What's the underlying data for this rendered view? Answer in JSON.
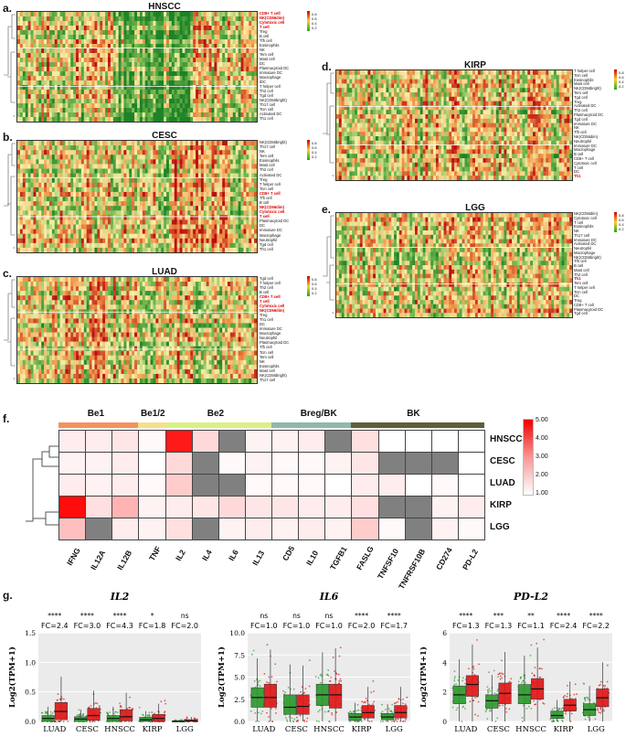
{
  "panels": {
    "a": {
      "label": "a.",
      "title": "HNSCC",
      "rows": [
        {
          "t": "CD8+ T cell",
          "r": 1
        },
        {
          "t": "NK(CD56dim)",
          "r": 1
        },
        {
          "t": "Cytotoxic cell",
          "r": 1
        },
        {
          "t": "T cell",
          "r": 1
        },
        {
          "t": "Treg"
        },
        {
          "t": "B cell"
        },
        {
          "t": "Tfh cell"
        },
        {
          "t": "Eosinophils"
        },
        {
          "t": "NK"
        },
        {
          "t": "Tem cell"
        },
        {
          "t": "Mast cell"
        },
        {
          "t": "DC"
        },
        {
          "t": "Plasmacytoid DC"
        },
        {
          "t": "Immature DC"
        },
        {
          "t": "Macrophage"
        },
        {
          "t": "iDC"
        },
        {
          "t": "T helper cell"
        },
        {
          "t": "Th2 cell"
        },
        {
          "t": "Tgd cell"
        },
        {
          "t": "NK(CD56bright)"
        },
        {
          "t": "Th17 cell"
        },
        {
          "t": "Tcm cell"
        },
        {
          "t": "Activated DC"
        },
        {
          "t": "Th1 cell"
        }
      ]
    },
    "b": {
      "label": "b.",
      "title": "CESC",
      "rows": [
        {
          "t": "NK(CD56bright)"
        },
        {
          "t": "Th17 cell"
        },
        {
          "t": "NK"
        },
        {
          "t": "Tem cell"
        },
        {
          "t": "Eosinophils"
        },
        {
          "t": "Mast cell"
        },
        {
          "t": "Th2 cell"
        },
        {
          "t": "Activated DC"
        },
        {
          "t": "Treg"
        },
        {
          "t": "T helper cell"
        },
        {
          "t": "Tcm cell"
        },
        {
          "t": "CD8+ T cell",
          "r": 1
        },
        {
          "t": "Tfh cell"
        },
        {
          "t": "B cell"
        },
        {
          "t": "NK(CD56dim)",
          "r": 1
        },
        {
          "t": "Cytotoxic cell",
          "r": 1
        },
        {
          "t": "T cell",
          "r": 1
        },
        {
          "t": "Plasmacytoid DC"
        },
        {
          "t": "DC"
        },
        {
          "t": "Immature DC"
        },
        {
          "t": "Macrophage"
        },
        {
          "t": "Neutrophil"
        },
        {
          "t": "Tgd cell"
        },
        {
          "t": "Th1 cell"
        }
      ]
    },
    "c": {
      "label": "c.",
      "title": "LUAD",
      "rows": [
        {
          "t": "Tgd cell"
        },
        {
          "t": "T helper cell"
        },
        {
          "t": "Th2 cell"
        },
        {
          "t": "B cell"
        },
        {
          "t": "CD8+ T cell",
          "r": 1
        },
        {
          "t": "T cell",
          "r": 1
        },
        {
          "t": "Cytotoxic cell",
          "r": 1
        },
        {
          "t": "NK(CD56dim)",
          "r": 1
        },
        {
          "t": "Treg"
        },
        {
          "t": "Th1 cell"
        },
        {
          "t": "DC"
        },
        {
          "t": "Immature DC"
        },
        {
          "t": "Macrophage"
        },
        {
          "t": "Neutrophil"
        },
        {
          "t": "Plasmacytoid DC"
        },
        {
          "t": "Tfh cell"
        },
        {
          "t": "Tcm cell"
        },
        {
          "t": "Tem cell"
        },
        {
          "t": "NK"
        },
        {
          "t": "Eosinophils"
        },
        {
          "t": "Mast cell"
        },
        {
          "t": "NK(CD56bright)"
        },
        {
          "t": "Th17 cell"
        }
      ]
    },
    "d": {
      "label": "d.",
      "title": "KIRP",
      "rows": [
        {
          "t": "T helper cell"
        },
        {
          "t": "Tcm cell"
        },
        {
          "t": "Eosinophils"
        },
        {
          "t": "Mast cell"
        },
        {
          "t": "NK(CD56bright)"
        },
        {
          "t": "Tem cell"
        },
        {
          "t": "Tgd cell"
        },
        {
          "t": "Treg"
        },
        {
          "t": "Activated DC"
        },
        {
          "t": "Th2 cell"
        },
        {
          "t": "Plasmacytoid DC"
        },
        {
          "t": "Tgd cell"
        },
        {
          "t": "Immature DC"
        },
        {
          "t": "NK"
        },
        {
          "t": "Tfh cell"
        },
        {
          "t": "NK(CD56dim)"
        },
        {
          "t": "Neutrophil"
        },
        {
          "t": "Immature DC"
        },
        {
          "t": "Macrophage"
        },
        {
          "t": "B cell"
        },
        {
          "t": "CD8+ T cell"
        },
        {
          "t": "Cytotoxic cell"
        },
        {
          "t": "T cell"
        },
        {
          "t": "DC"
        },
        {
          "t": "Th1",
          "r": 1
        }
      ]
    },
    "e": {
      "label": "e.",
      "title": "LGG",
      "rows": [
        {
          "t": "NK(CD56dim)"
        },
        {
          "t": "Cytotoxic cell"
        },
        {
          "t": "T cell"
        },
        {
          "t": "Eosinophils"
        },
        {
          "t": "NK"
        },
        {
          "t": "Th17 cell"
        },
        {
          "t": "Immature DC"
        },
        {
          "t": "Activated DC"
        },
        {
          "t": "Neutrophil"
        },
        {
          "t": "Macrophage"
        },
        {
          "t": "NK(CD56bright)"
        },
        {
          "t": "Tfh cell"
        },
        {
          "t": "B cell"
        },
        {
          "t": "Mast cell"
        },
        {
          "t": "Th2 cell"
        },
        {
          "t": "Th1",
          "r": 1
        },
        {
          "t": "Tem cell"
        },
        {
          "t": "T helper cell"
        },
        {
          "t": "Tcm cell"
        },
        {
          "t": "DC"
        },
        {
          "t": "Treg"
        },
        {
          "t": "CD8+ T cell"
        },
        {
          "t": "Plasmacytoid DC"
        },
        {
          "t": "Tgd cell"
        }
      ]
    }
  },
  "hm_legend": [
    "0.8",
    "0.6",
    "0.4",
    "0.2"
  ],
  "panel_f": {
    "label": "f.",
    "groups": [
      {
        "name": "Be1",
        "color": "#f29360"
      },
      {
        "name": "Be1/2",
        "color": "#f6e08a"
      },
      {
        "name": "Be2",
        "color": "#dbef86"
      },
      {
        "name": "Breg/BK",
        "color": "#8fb8a8"
      },
      {
        "name": "BK",
        "color": "#5e5e3a"
      }
    ],
    "rows": [
      "HNSCC",
      "CESC",
      "LUAD",
      "KIRP",
      "LGG"
    ],
    "cols": [
      "IFNG",
      "IL12A",
      "IL12B",
      "TNF",
      "IL2",
      "IL4",
      "IL6",
      "IL13",
      "CD5",
      "IL10",
      "TGFB1",
      "FASLG",
      "TNFSF10",
      "TNFRSF10B",
      "CD274",
      "PD-L2"
    ],
    "values": [
      [
        1.3,
        1.3,
        1.4,
        1.1,
        4.6,
        1.6,
        0,
        1.2,
        1.2,
        1.3,
        0,
        1.5,
        1.0,
        1.0,
        1.0,
        1.0
      ],
      [
        1.2,
        1.2,
        1.3,
        1.0,
        1.6,
        0,
        1.1,
        1.2,
        1.1,
        1.1,
        1.2,
        1.4,
        0,
        0,
        0,
        1.0
      ],
      [
        1.3,
        1.2,
        1.3,
        1.1,
        1.8,
        0,
        0,
        1.1,
        1.1,
        1.1,
        1.0,
        1.3,
        1.3,
        1.0,
        1.1,
        1.0
      ],
      [
        4.8,
        1.5,
        2.2,
        1.2,
        1.3,
        1.4,
        1.6,
        1.4,
        1.4,
        1.3,
        1.3,
        1.5,
        0,
        0,
        1.2,
        1.3
      ],
      [
        2.0,
        0,
        1.3,
        1.2,
        1.5,
        0,
        1.2,
        1.3,
        1.2,
        1.3,
        1.2,
        1.8,
        1.1,
        0,
        1.2,
        1.1
      ]
    ],
    "scale": {
      "min": 1.0,
      "max": 5.0,
      "ticks": [
        "5.00",
        "4.00",
        "3.00",
        "2.00",
        "1.00"
      ]
    }
  },
  "panel_g": {
    "label": "g.",
    "ylabel": "Log2(TPM+1)",
    "categories": [
      "LUAD",
      "CESC",
      "HNSCC",
      "KIRP",
      "LGG"
    ],
    "colors": {
      "normal": "#2e9b2e",
      "tumor": "#e01818"
    },
    "plots": [
      {
        "gene": "IL2",
        "ylim": [
          0,
          1.5
        ],
        "yticks": [
          "0.0",
          "0.5",
          "1.0",
          "1.5"
        ],
        "sig": [
          "****",
          "****",
          "****",
          "*",
          "ns"
        ],
        "fc": [
          "FC=2.4",
          "FC=3.0",
          "FC=4.3",
          "FC=1.8",
          "FC=2.0"
        ],
        "normal_median": [
          0.05,
          0.04,
          0.05,
          0.03,
          0.0
        ],
        "tumor_median": [
          0.17,
          0.1,
          0.08,
          0.05,
          0.01
        ],
        "normal_q": [
          [
            0.0,
            0.1
          ],
          [
            0.0,
            0.08
          ],
          [
            0.0,
            0.1
          ],
          [
            0.0,
            0.07
          ],
          [
            0.0,
            0.01
          ]
        ],
        "tumor_q": [
          [
            0.03,
            0.32
          ],
          [
            0.02,
            0.22
          ],
          [
            0.01,
            0.2
          ],
          [
            0.0,
            0.12
          ],
          [
            0.0,
            0.03
          ]
        ]
      },
      {
        "gene": "IL6",
        "ylim": [
          0,
          10
        ],
        "yticks": [
          "0.0",
          "2.5",
          "5.0",
          "7.5",
          "10.0"
        ],
        "sig": [
          "ns",
          "ns",
          "ns",
          "****",
          "****"
        ],
        "fc": [
          "FC=1.0",
          "FC=1.0",
          "FC=1.0",
          "FC=2.0",
          "FC=1.7"
        ],
        "normal_median": [
          2.7,
          1.6,
          3.0,
          0.5,
          0.5
        ],
        "tumor_median": [
          2.7,
          1.7,
          3.0,
          1.0,
          1.0
        ],
        "normal_q": [
          [
            1.6,
            3.8
          ],
          [
            0.8,
            3.0
          ],
          [
            1.8,
            4.2
          ],
          [
            0.1,
            0.9
          ],
          [
            0.2,
            0.9
          ]
        ],
        "tumor_q": [
          [
            1.6,
            4.2
          ],
          [
            0.8,
            3.0
          ],
          [
            1.5,
            4.2
          ],
          [
            0.4,
            1.8
          ],
          [
            0.4,
            1.8
          ]
        ]
      },
      {
        "gene": "PD-L2",
        "ylim": [
          0,
          6
        ],
        "yticks": [
          "0",
          "2",
          "4",
          "6"
        ],
        "sig": [
          "****",
          "***",
          "**",
          "****",
          "****"
        ],
        "fc": [
          "FC=1.3",
          "FC=1.3",
          "FC=1.1",
          "FC=2.4",
          "FC=2.2"
        ],
        "normal_median": [
          1.8,
          1.4,
          1.8,
          0.4,
          0.8
        ],
        "tumor_median": [
          2.5,
          1.9,
          2.2,
          1.1,
          1.6
        ],
        "normal_q": [
          [
            1.2,
            2.4
          ],
          [
            0.9,
            1.8
          ],
          [
            1.2,
            2.5
          ],
          [
            0.2,
            0.7
          ],
          [
            0.4,
            1.2
          ]
        ],
        "tumor_q": [
          [
            1.7,
            3.1
          ],
          [
            1.2,
            2.6
          ],
          [
            1.5,
            2.9
          ],
          [
            0.7,
            1.5
          ],
          [
            1.0,
            2.2
          ]
        ]
      }
    ]
  }
}
